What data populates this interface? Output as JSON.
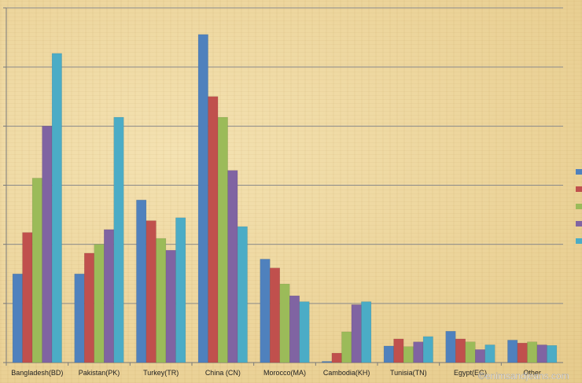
{
  "chart_data": {
    "type": "bar",
    "title": "",
    "xlabel": "",
    "ylabel": "",
    "ylim": [
      0,
      60
    ],
    "grid": true,
    "legend_placement": "right",
    "categories": [
      "Bangladesh(BD)",
      "Pakistan(PK)",
      "Turkey(TR)",
      "China (CN)",
      "Morocco(MA)",
      "Cambodia(KH)",
      "Tunisia(TN)",
      "Egypt(EG)",
      "Other"
    ],
    "series": [
      {
        "color": "#4f81bd",
        "values": [
          15,
          15,
          27.5,
          55.5,
          17.5,
          0.2,
          2.8,
          5.3,
          3.8
        ]
      },
      {
        "color": "#c0504d",
        "values": [
          22,
          18.5,
          24,
          45,
          16,
          1.6,
          4,
          4,
          3.3
        ]
      },
      {
        "color": "#9bbb59",
        "values": [
          31.2,
          20,
          21,
          41.5,
          13.3,
          5.2,
          2.7,
          3.5,
          3.5
        ]
      },
      {
        "color": "#8064a2",
        "values": [
          40,
          22.5,
          19,
          32.5,
          11.3,
          9.8,
          3.5,
          2.2,
          3
        ]
      },
      {
        "color": "#4bacc6",
        "values": [
          52.3,
          41.5,
          24.5,
          23,
          10.3,
          10.3,
          4.4,
          3,
          2.9
        ]
      }
    ]
  },
  "watermark": "©enimsandjeans.com"
}
